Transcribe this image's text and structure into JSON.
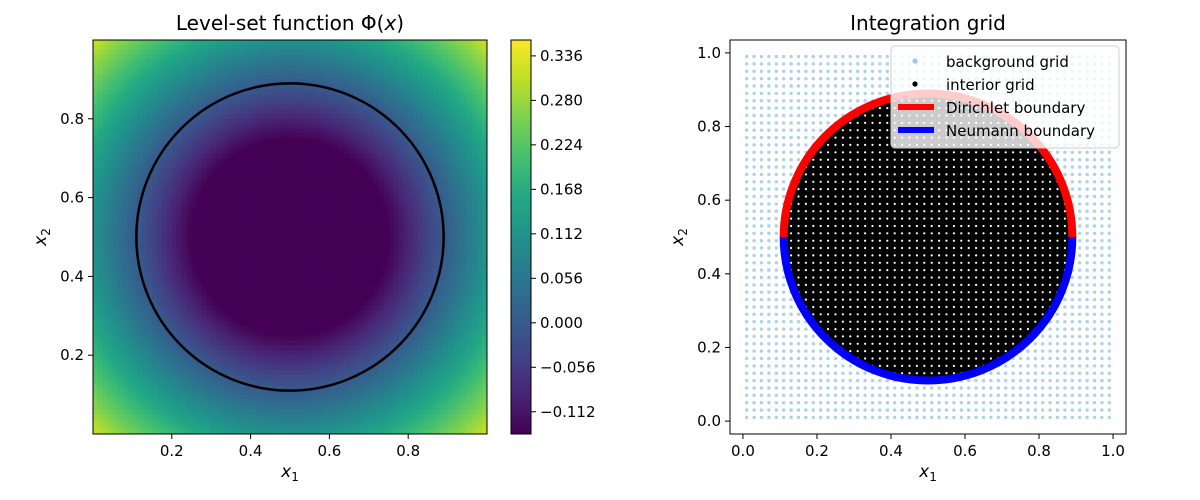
{
  "chart_data": [
    {
      "type": "heatmap",
      "title": "Level-set function Φ(x)",
      "title_parts": {
        "text": "Level-set function Φ(",
        "var": "x",
        "close": ")"
      },
      "xlabel": {
        "base": "x",
        "sub": "1"
      },
      "ylabel": {
        "base": "x",
        "sub": "2"
      },
      "xlim": [
        0.0,
        1.0
      ],
      "ylim": [
        0.0,
        1.0
      ],
      "xticks": [
        0.2,
        0.4,
        0.6,
        0.8
      ],
      "xtick_labels": [
        "0.2",
        "0.4",
        "0.6",
        "0.8"
      ],
      "yticks": [
        0.2,
        0.4,
        0.6,
        0.8
      ],
      "ytick_labels": [
        "0.2",
        "0.4",
        "0.6",
        "0.8"
      ],
      "function": "sqrt((x1-0.5)^2+(x2-0.5)^2) - 0.39",
      "colormap": "viridis",
      "vmin": -0.14,
      "vmax": 0.356,
      "zero_contour": {
        "cx": 0.5,
        "cy": 0.5,
        "r": 0.39,
        "color": "#000000"
      },
      "colorbar": {
        "ticks": [
          0.336,
          0.28,
          0.224,
          0.168,
          0.112,
          0.056,
          0.0,
          -0.056,
          -0.112
        ],
        "tick_labels": [
          "0.336",
          "0.280",
          "0.224",
          "0.168",
          "0.112",
          "0.056",
          "0.000",
          "−0.056",
          "−0.112"
        ]
      }
    },
    {
      "type": "scatter",
      "title": "Integration grid",
      "xlabel": {
        "base": "x",
        "sub": "1"
      },
      "ylabel": {
        "base": "x",
        "sub": "2"
      },
      "xlim": [
        -0.035,
        1.035
      ],
      "ylim": [
        -0.035,
        1.035
      ],
      "xticks": [
        0.0,
        0.2,
        0.4,
        0.6,
        0.8,
        1.0
      ],
      "xtick_labels": [
        "0.0",
        "0.2",
        "0.4",
        "0.6",
        "0.8",
        "1.0"
      ],
      "yticks": [
        0.0,
        0.2,
        0.4,
        0.6,
        0.8,
        1.0
      ],
      "ytick_labels": [
        "0.0",
        "0.2",
        "0.4",
        "0.6",
        "0.8",
        "1.0"
      ],
      "background_grid": {
        "range": [
          0.01,
          0.99
        ],
        "n": 50,
        "color": "#9ecae1"
      },
      "circle": {
        "cx": 0.5,
        "cy": 0.5,
        "r": 0.39
      },
      "legend": {
        "position": "top-right",
        "entries": [
          {
            "label": "background grid",
            "kind": "marker",
            "color": "#9ecae1"
          },
          {
            "label": "interior grid",
            "kind": "marker",
            "color": "#000000"
          },
          {
            "label": "Dirichlet boundary",
            "kind": "line",
            "color": "#ff0000"
          },
          {
            "label": "Neumann boundary",
            "kind": "line",
            "color": "#0000ff"
          }
        ]
      },
      "series": [
        {
          "name": "Dirichlet boundary",
          "color": "#ff0000",
          "theta_range_deg": [
            0,
            180
          ]
        },
        {
          "name": "Neumann boundary",
          "color": "#0000ff",
          "theta_range_deg": [
            180,
            360
          ]
        }
      ]
    }
  ]
}
